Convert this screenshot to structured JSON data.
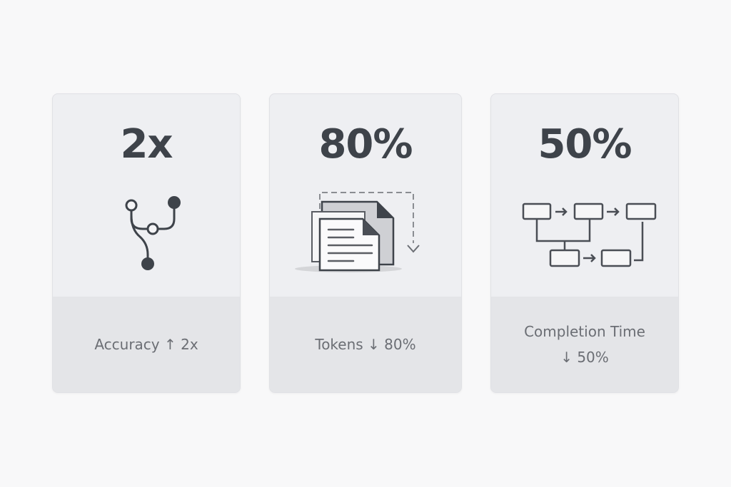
{
  "cards": [
    {
      "stat": "2x",
      "label": "Accuracy ↑ 2x",
      "icon": "branch-graph-icon"
    },
    {
      "stat": "80%",
      "label": "Tokens ↓ 80%",
      "icon": "documents-compress-icon"
    },
    {
      "stat": "50%",
      "label_line1": "Completion Time",
      "label_line2": "↓ 50%",
      "icon": "workflow-icon"
    }
  ],
  "colors": {
    "ink": "#3e434a",
    "card": "#eeeff2",
    "footer": "#e4e5e8",
    "label": "#6b6e74"
  }
}
